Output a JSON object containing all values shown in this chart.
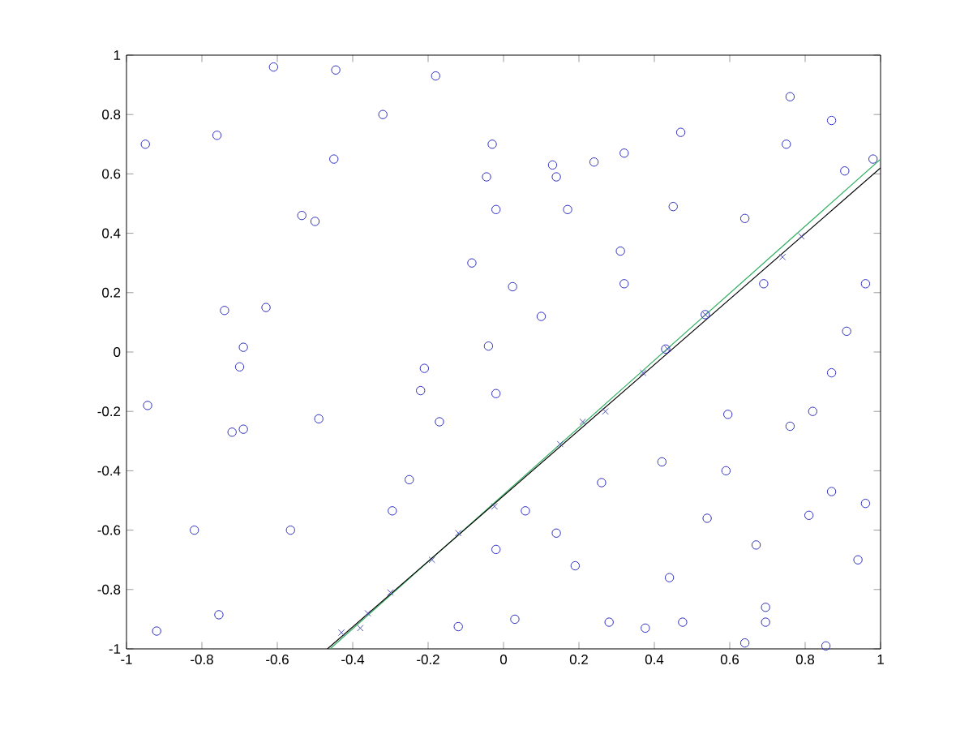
{
  "chart_data": {
    "type": "scatter",
    "xlim": [
      -1,
      1
    ],
    "ylim": [
      -1,
      1
    ],
    "xticks": [
      -1,
      -0.8,
      -0.6,
      -0.4,
      -0.2,
      0,
      0.2,
      0.4,
      0.6,
      0.8,
      1
    ],
    "yticks": [
      -1,
      -0.8,
      -0.6,
      -0.4,
      -0.2,
      0,
      0.2,
      0.4,
      0.6,
      0.8,
      1
    ],
    "series": [
      {
        "marker": "circle",
        "color": "#3030c0",
        "x": [
          -0.95,
          -0.76,
          -0.61,
          -0.445,
          -0.32,
          -0.18,
          -0.03,
          -0.45,
          -0.535,
          -0.5,
          -0.045,
          -0.02,
          -0.084,
          -0.74,
          -0.63,
          -0.69,
          -0.04,
          0.024,
          0.1,
          0.13,
          0.14,
          0.17,
          0.24,
          0.32,
          0.31,
          0.32,
          0.45,
          0.47,
          0.535,
          0.43,
          0.64,
          0.69,
          0.76,
          0.75,
          0.87,
          0.905,
          0.98,
          0.96,
          0.91,
          -0.944,
          -0.7,
          -0.72,
          -0.69,
          -0.49,
          -0.21,
          -0.22,
          -0.17,
          -0.02,
          -0.25,
          -0.295,
          -0.82,
          -0.565,
          -0.755,
          -0.92,
          -0.12,
          -0.02,
          0.058,
          0.14,
          0.19,
          0.26,
          0.03,
          0.28,
          0.376,
          0.475,
          0.44,
          0.42,
          0.54,
          0.59,
          0.595,
          0.67,
          0.695,
          0.695,
          0.64,
          0.76,
          0.82,
          0.87,
          0.87,
          0.81,
          0.96,
          0.94,
          0.855
        ],
        "values": [
          0.7,
          0.73,
          0.96,
          0.95,
          0.8,
          0.93,
          0.7,
          0.65,
          0.46,
          0.44,
          0.59,
          0.48,
          0.3,
          0.14,
          0.15,
          0.016,
          0.02,
          0.22,
          0.12,
          0.63,
          0.59,
          0.48,
          0.64,
          0.67,
          0.34,
          0.23,
          0.49,
          0.74,
          0.126,
          0.01,
          0.45,
          0.23,
          0.86,
          0.7,
          0.78,
          0.61,
          0.65,
          0.23,
          0.07,
          -0.18,
          -0.05,
          -0.27,
          -0.26,
          -0.225,
          -0.055,
          -0.13,
          -0.235,
          -0.14,
          -0.43,
          -0.535,
          -0.6,
          -0.6,
          -0.885,
          -0.94,
          -0.925,
          -0.665,
          -0.535,
          -0.61,
          -0.72,
          -0.44,
          -0.9,
          -0.91,
          -0.93,
          -0.91,
          -0.76,
          -0.37,
          -0.56,
          -0.4,
          -0.21,
          -0.65,
          -0.86,
          -0.91,
          -0.98,
          -0.25,
          -0.2,
          -0.07,
          -0.47,
          -0.55,
          -0.51,
          -0.7,
          -0.99
        ]
      },
      {
        "marker": "cross",
        "color": "#5050c0",
        "x": [
          -0.43,
          -0.38,
          -0.36,
          -0.3,
          -0.19,
          -0.12,
          -0.024,
          0.15,
          0.21,
          0.27,
          0.37,
          0.435,
          0.535,
          0.74,
          0.79
        ],
        "values": [
          -0.945,
          -0.93,
          -0.88,
          -0.81,
          -0.7,
          -0.61,
          -0.52,
          -0.31,
          -0.235,
          -0.2,
          -0.07,
          0.01,
          0.126,
          0.32,
          0.39
        ]
      },
      {
        "type": "line",
        "marker": "none",
        "color": "#30b060",
        "x": [
          -0.46,
          1
        ],
        "values": [
          -1,
          0.65
        ]
      },
      {
        "type": "line",
        "marker": "none",
        "color": "#000000",
        "x": [
          -0.467,
          1
        ],
        "values": [
          -1,
          0.62
        ]
      }
    ]
  }
}
